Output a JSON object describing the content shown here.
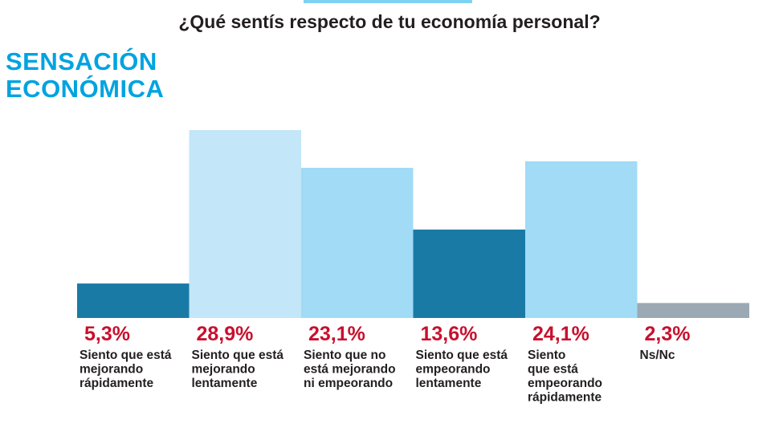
{
  "question": "¿Qué sentís respecto de tu economía personal?",
  "heading": [
    "SENSACIÓN",
    "ECONÓMICA"
  ],
  "chart_data": {
    "type": "bar",
    "title": "¿Qué sentís respecto de tu economía personal?",
    "categories": [
      [
        "Siento que está",
        "mejorando",
        "rápidamente"
      ],
      [
        "Siento que está",
        "mejorando",
        "lentamente"
      ],
      [
        "Siento que no",
        "está mejorando",
        "ni empeorando"
      ],
      [
        "Siento que está",
        "empeorando",
        "lentamente"
      ],
      [
        "Siento",
        "que está",
        "empeorando",
        "rápidamente"
      ],
      [
        "Ns/Nc"
      ]
    ],
    "values": [
      5.3,
      28.9,
      23.1,
      13.6,
      24.1,
      2.3
    ],
    "value_labels": [
      "5,3%",
      "28,9%",
      "23,1%",
      "13,6%",
      "24,1%",
      "2,3%"
    ],
    "colors": [
      "#1a7aa6",
      "#c3e6f8",
      "#a1dbf6",
      "#1a7aa6",
      "#a1dbf6",
      "#9aa9b3"
    ],
    "ylim": [
      0,
      28.9
    ],
    "grid": false,
    "legend": "none"
  }
}
